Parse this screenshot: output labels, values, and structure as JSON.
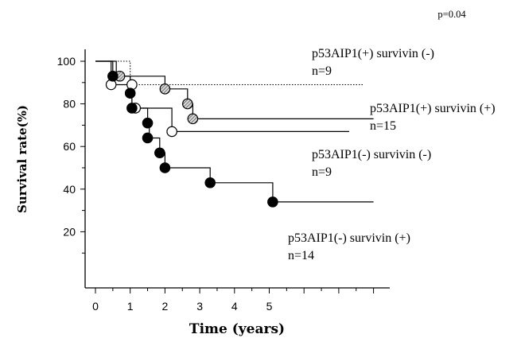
{
  "chart_data": {
    "type": "line",
    "title": "",
    "p_value": "p=0.04",
    "xlabel": "Time (years)",
    "ylabel": "Survival rate(%)",
    "xlim": [
      0,
      8
    ],
    "ylim": [
      0,
      105
    ],
    "x_ticks": [
      0,
      1,
      2,
      3,
      4,
      5
    ],
    "y_ticks": [
      20,
      40,
      60,
      80,
      100
    ],
    "series": [
      {
        "name": "p53AIP1(+) survivin (-)",
        "n_label": "n=9",
        "marker": "none",
        "line_style": "dotted",
        "color": "#000000",
        "steps": [
          [
            0,
            100
          ],
          [
            1.0,
            100
          ],
          [
            1.0,
            89
          ],
          [
            7.7,
            89
          ]
        ],
        "events": []
      },
      {
        "name": "p53AIP1(+) survivin (+)",
        "n_label": "n=15",
        "marker": "hatched",
        "line_style": "solid",
        "color": "#000000",
        "steps": [
          [
            0,
            100
          ],
          [
            0.6,
            100
          ],
          [
            0.6,
            93
          ],
          [
            2.0,
            93
          ],
          [
            2.0,
            87
          ],
          [
            2.65,
            87
          ],
          [
            2.65,
            80
          ],
          [
            2.8,
            80
          ],
          [
            2.8,
            73
          ],
          [
            8.0,
            73
          ]
        ],
        "events": [
          [
            0.7,
            93
          ],
          [
            2.0,
            87
          ],
          [
            2.65,
            80
          ],
          [
            2.8,
            73
          ]
        ]
      },
      {
        "name": "p53AIP1(-) survivin (-)",
        "n_label": "n=9",
        "marker": "open",
        "line_style": "solid",
        "color": "#000000",
        "steps": [
          [
            0,
            100
          ],
          [
            0.45,
            100
          ],
          [
            0.45,
            89
          ],
          [
            1.05,
            89
          ],
          [
            1.05,
            78
          ],
          [
            2.2,
            78
          ],
          [
            2.2,
            67
          ],
          [
            7.3,
            67
          ]
        ],
        "events": [
          [
            0.45,
            89
          ],
          [
            1.05,
            89
          ],
          [
            1.15,
            78
          ],
          [
            2.2,
            67
          ]
        ]
      },
      {
        "name": "p53AIP1(-) survivin (+)",
        "n_label": "n=14",
        "marker": "filled",
        "line_style": "solid",
        "color": "#000000",
        "steps": [
          [
            0,
            100
          ],
          [
            0.5,
            100
          ],
          [
            0.5,
            93
          ],
          [
            1.0,
            93
          ],
          [
            1.0,
            85
          ],
          [
            1.05,
            85
          ],
          [
            1.05,
            78
          ],
          [
            1.5,
            78
          ],
          [
            1.5,
            71
          ],
          [
            1.55,
            71
          ],
          [
            1.55,
            64
          ],
          [
            1.85,
            64
          ],
          [
            1.85,
            57
          ],
          [
            2.0,
            57
          ],
          [
            2.0,
            50
          ],
          [
            3.3,
            50
          ],
          [
            3.3,
            43
          ],
          [
            5.1,
            43
          ],
          [
            5.1,
            34
          ],
          [
            8.0,
            34
          ]
        ],
        "events": [
          [
            0.5,
            93
          ],
          [
            1.0,
            85
          ],
          [
            1.05,
            78
          ],
          [
            1.5,
            71
          ],
          [
            1.5,
            64
          ],
          [
            1.85,
            57
          ],
          [
            2.0,
            50
          ],
          [
            3.3,
            43
          ],
          [
            5.1,
            34
          ]
        ]
      }
    ]
  }
}
